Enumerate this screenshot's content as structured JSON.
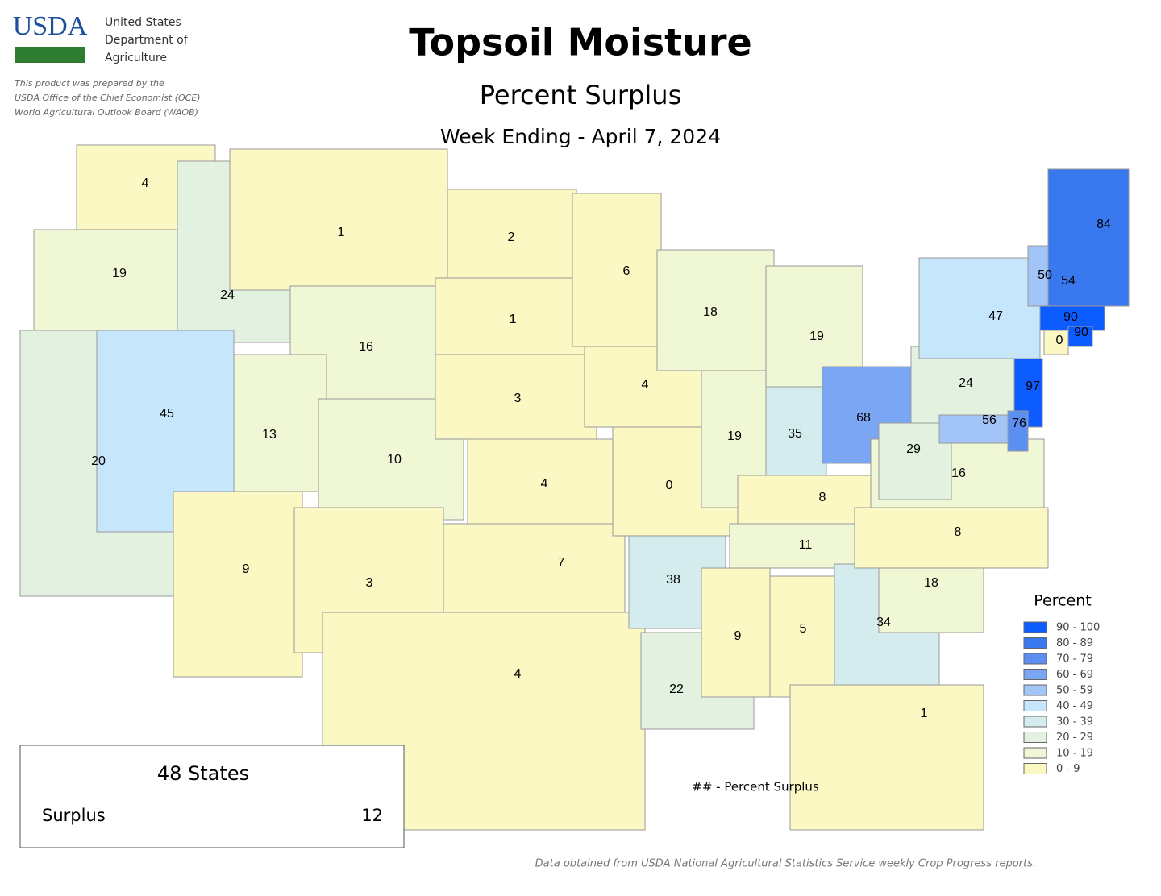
{
  "header": {
    "agency": "USDA",
    "agency_lines": [
      "United States",
      "Department of",
      "Agriculture"
    ],
    "disclaimer": [
      "This product was prepared by the",
      "USDA Office of the Chief Economist (OCE)",
      "World Agricultural Outlook Board (WAOB)"
    ],
    "title": "Topsoil Moisture",
    "subtitle": "Percent Surplus",
    "date": "Week Ending - April 7, 2024"
  },
  "states": [
    4,
    19,
    20,
    24,
    45,
    1,
    16,
    13,
    10,
    9,
    3,
    2,
    1,
    3,
    4,
    7,
    4,
    6,
    4,
    0,
    38,
    22,
    18,
    19,
    19,
    35,
    68,
    8,
    11,
    9,
    5,
    34,
    1,
    18,
    8,
    16,
    29,
    24,
    47,
    50,
    54,
    84,
    90,
    0,
    90,
    97,
    56,
    76
  ],
  "legend": {
    "title": "Percent",
    "bins": [
      {
        "value": [
          90,
          100
        ],
        "label": "90 - 100",
        "color": "#0d5cff"
      },
      {
        "value": [
          80,
          89
        ],
        "label": "80 - 89",
        "color": "#3a78f0"
      },
      {
        "value": [
          70,
          79
        ],
        "label": "70 - 79",
        "color": "#5b8ff2"
      },
      {
        "value": [
          60,
          69
        ],
        "label": "60 - 69",
        "color": "#7ba6f4"
      },
      {
        "value": [
          50,
          59
        ],
        "label": "50 - 59",
        "color": "#a3c4f7"
      },
      {
        "value": [
          40,
          49
        ],
        "label": "40 - 49",
        "color": "#c6e6fb"
      },
      {
        "value": [
          30,
          39
        ],
        "label": "30 - 39",
        "color": "#d5ecef"
      },
      {
        "value": [
          20,
          29
        ],
        "label": "20 - 29",
        "color": "#e3f1e1"
      },
      {
        "value": [
          10,
          19
        ],
        "label": "10 - 19",
        "color": "#f0f7d4"
      },
      {
        "value": [
          0,
          9
        ],
        "label": "0 - 9",
        "color": "#fbf8c4"
      }
    ]
  },
  "note": "## - Percent Surplus",
  "summary": {
    "title": "48 States",
    "label": "Surplus",
    "value": 12
  },
  "source": "Data obtained from USDA National Agricultural Statistics Service weekly Crop Progress reports."
}
